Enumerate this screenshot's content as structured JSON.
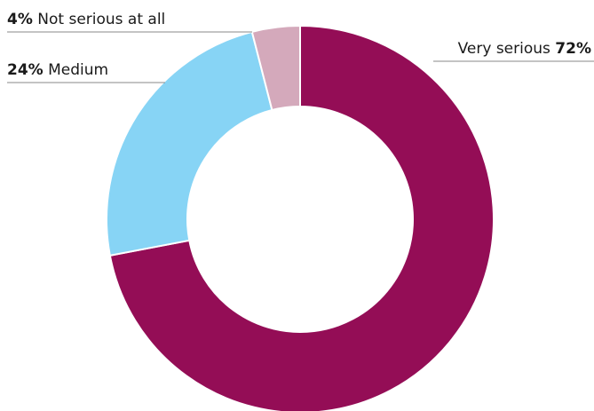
{
  "chart_data": {
    "type": "pie",
    "style": "donut",
    "start_angle_deg": 0,
    "direction": "clockwise",
    "slices": [
      {
        "name": "Very serious",
        "value": 72,
        "pct_label": "72%",
        "color": "#940d56"
      },
      {
        "name": "Medium",
        "value": 24,
        "pct_label": "24%",
        "color": "#87d4f5"
      },
      {
        "name": "Not serious at all",
        "value": 4,
        "pct_label": "4%",
        "color": "#d4a9bb"
      }
    ]
  }
}
